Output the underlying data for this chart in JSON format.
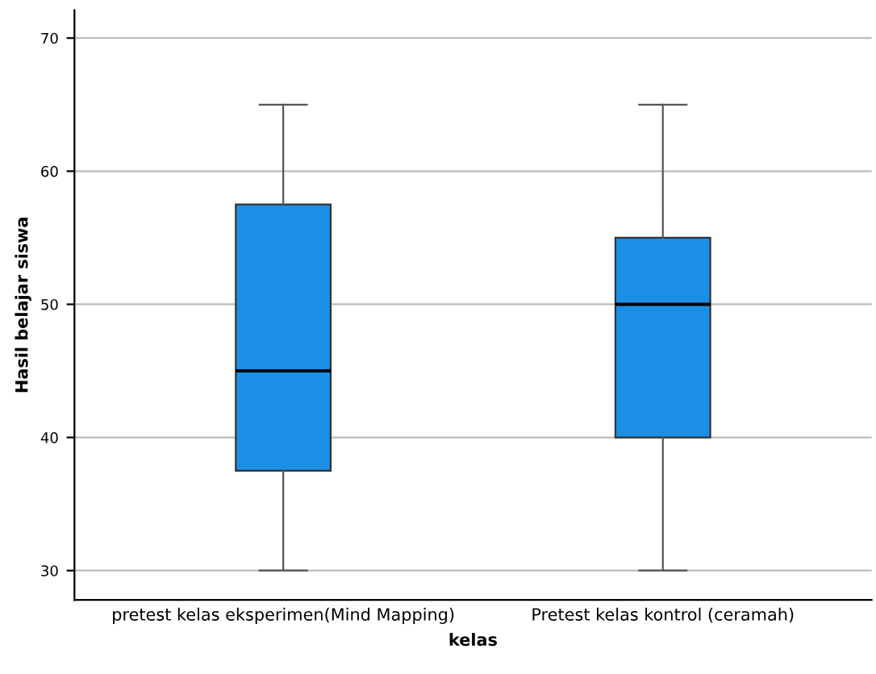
{
  "chart_data": {
    "type": "box",
    "xlabel": "kelas",
    "ylabel": "Hasil belajar siswa",
    "categories": [
      "pretest kelas eksperimen(Mind Mapping)",
      "Pretest kelas kontrol (ceramah)"
    ],
    "boxes": [
      {
        "low": 30,
        "q1": 37.5,
        "median": 45,
        "q3": 57.5,
        "high": 65
      },
      {
        "low": 30,
        "q1": 40,
        "median": 50,
        "q3": 55,
        "high": 65
      }
    ],
    "color": "#1b8fe6",
    "ylim": [
      27.8,
      72.1
    ],
    "yticks": [
      30,
      40,
      50,
      60,
      70
    ],
    "grid": "y"
  }
}
